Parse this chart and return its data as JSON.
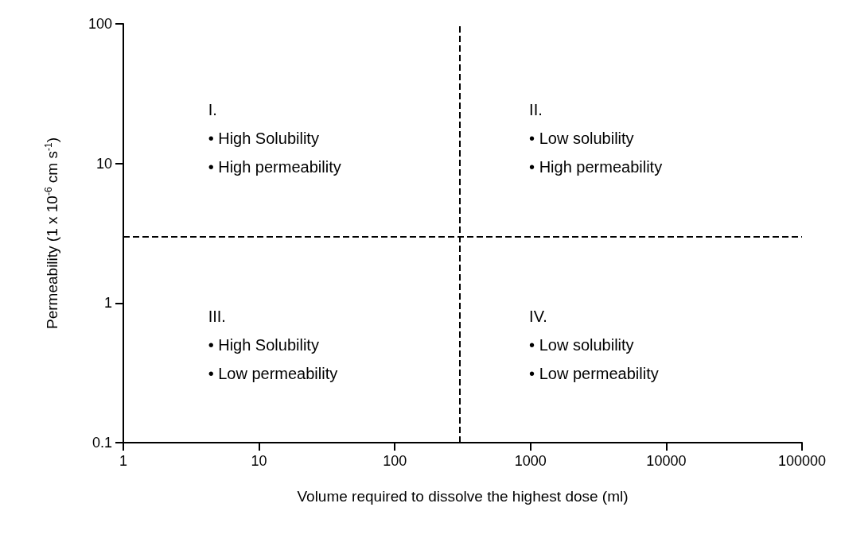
{
  "chart_data": {
    "type": "scatter",
    "xlabel": "Volume required to dissolve the highest dose (ml)",
    "ylabel": "Permeability (1 x 10$^{-6}$ cm s$^{-1}$)",
    "log": "xy",
    "xlim": [
      1,
      100000
    ],
    "xticks": [
      1,
      10,
      100,
      1000,
      10000,
      100000
    ],
    "ylim": [
      0.1,
      100
    ],
    "yticks": [
      0.1,
      1,
      10,
      100
    ],
    "grid": false,
    "ref_lines": [
      {
        "axis": "x",
        "value": 300,
        "line_style": "dashed",
        "color": "#000000"
      },
      {
        "axis": "y",
        "value": 3,
        "line_style": "dashed",
        "color": "#000000"
      }
    ],
    "annotations": [
      "I.\n• High Solubility\n• High permeability",
      "II.\n• Low solubility\n• High permeability",
      "III.\n• High Solubility\n• Low permeability",
      "IV.\n• Low solubility\n• Low permeability"
    ]
  }
}
